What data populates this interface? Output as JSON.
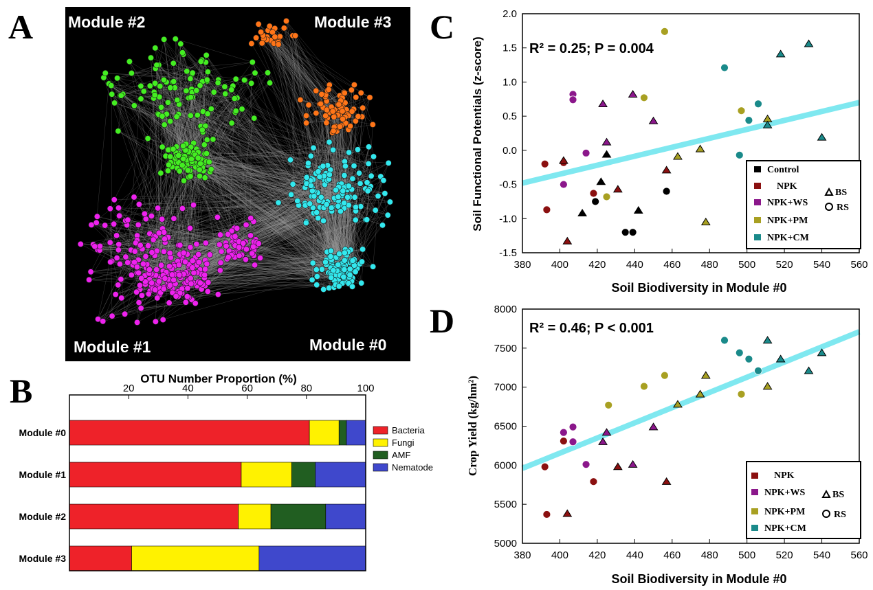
{
  "panels": {
    "a": "A",
    "b": "B",
    "c": "C",
    "d": "D"
  },
  "network": {
    "modules": [
      {
        "label": "Module #0",
        "color": "#33e8ee",
        "nodes": 230
      },
      {
        "label": "Module #1",
        "color": "#ee22ee",
        "nodes": 300
      },
      {
        "label": "Module #2",
        "color": "#44ee22",
        "nodes": 200
      },
      {
        "label": "Module #3",
        "color": "#ff7518",
        "nodes": 100
      }
    ],
    "background": "#000000",
    "edge_color": "#9a9a9a"
  },
  "legend_points": {
    "control": "Control",
    "npk": "NPK",
    "npk_ws": "NPK+WS",
    "npk_pm": "NPK+PM",
    "npk_cm": "NPK+CM",
    "bs": "BS",
    "rs": "RS"
  },
  "colors": {
    "control": "#000000",
    "npk": "#8b1010",
    "npk_ws": "#8b178b",
    "npk_pm": "#a8a022",
    "npk_cm": "#1a8a8a",
    "fit_line": "#7fe8f0"
  },
  "chart_data": [
    {
      "id": "B",
      "type": "bar",
      "orientation": "horizontal",
      "stacked": true,
      "title": "OTU Number Proportion (%)",
      "categories": [
        "Module #0",
        "Module #1",
        "Module #2",
        "Module #3"
      ],
      "xlim": [
        0,
        100
      ],
      "xticks": [
        20,
        40,
        60,
        80,
        100
      ],
      "tick_labels": [
        "20",
        "40",
        "60",
        "80",
        "100"
      ],
      "series": [
        {
          "name": "Bacteria",
          "color": "#ee2229",
          "values": [
            81,
            58,
            57,
            21
          ]
        },
        {
          "name": "Fungi",
          "color": "#fff200",
          "values": [
            10,
            17,
            11,
            43
          ]
        },
        {
          "name": "AMF",
          "color": "#215e21",
          "values": [
            2.5,
            8,
            18.5,
            0
          ]
        },
        {
          "name": "Nematode",
          "color": "#3f48cc",
          "values": [
            6.5,
            17,
            13.5,
            36
          ]
        }
      ],
      "legend_position": "right"
    },
    {
      "id": "C",
      "type": "scatter",
      "xlabel": "Soil Biodiversity in Module #0",
      "ylabel": "Soil Functional Potentials (z-score)",
      "annotation": "R² = 0.25; P = 0.004",
      "xlim": [
        380,
        560
      ],
      "ylim": [
        -1.5,
        2.0
      ],
      "xticks": [
        380,
        400,
        420,
        440,
        460,
        480,
        500,
        520,
        540,
        560
      ],
      "yticks": [
        -1.5,
        -1.0,
        -0.5,
        0.0,
        0.5,
        1.0,
        1.5,
        2.0
      ],
      "x_tick_labels": [
        "380",
        "400",
        "420",
        "440",
        "460",
        "480",
        "500",
        "520",
        "540",
        "560"
      ],
      "y_tick_labels": [
        "-1.5",
        "-1.0",
        "-0.5",
        "0.0",
        "0.5",
        "1.0",
        "1.5",
        "2.0"
      ],
      "fit_line": [
        [
          380,
          -0.48
        ],
        [
          560,
          0.7
        ]
      ],
      "legend_position": "bottom-right",
      "points": [
        {
          "x": 392,
          "y": -0.2,
          "g": "npk",
          "s": "rs"
        },
        {
          "x": 393,
          "y": -0.87,
          "g": "npk",
          "s": "rs"
        },
        {
          "x": 402,
          "y": -0.18,
          "g": "npk",
          "s": "rs"
        },
        {
          "x": 402,
          "y": -0.15,
          "g": "npk",
          "s": "bs"
        },
        {
          "x": 404,
          "y": -1.33,
          "g": "npk",
          "s": "bs"
        },
        {
          "x": 418,
          "y": -0.63,
          "g": "npk",
          "s": "rs"
        },
        {
          "x": 431,
          "y": -0.57,
          "g": "npk",
          "s": "bs"
        },
        {
          "x": 457,
          "y": -0.29,
          "g": "npk",
          "s": "bs"
        },
        {
          "x": 402,
          "y": -0.5,
          "g": "npk_ws",
          "s": "rs"
        },
        {
          "x": 407,
          "y": 0.82,
          "g": "npk_ws",
          "s": "rs"
        },
        {
          "x": 407,
          "y": 0.74,
          "g": "npk_ws",
          "s": "rs"
        },
        {
          "x": 414,
          "y": -0.04,
          "g": "npk_ws",
          "s": "rs"
        },
        {
          "x": 423,
          "y": 0.68,
          "g": "npk_ws",
          "s": "bs"
        },
        {
          "x": 425,
          "y": 0.12,
          "g": "npk_ws",
          "s": "bs"
        },
        {
          "x": 439,
          "y": 0.82,
          "g": "npk_ws",
          "s": "bs"
        },
        {
          "x": 450,
          "y": 0.43,
          "g": "npk_ws",
          "s": "bs"
        },
        {
          "x": 419,
          "y": -0.75,
          "g": "control",
          "s": "rs"
        },
        {
          "x": 412,
          "y": -0.92,
          "g": "control",
          "s": "bs"
        },
        {
          "x": 422,
          "y": -0.46,
          "g": "control",
          "s": "bs"
        },
        {
          "x": 425,
          "y": -0.06,
          "g": "control",
          "s": "bs"
        },
        {
          "x": 435,
          "y": -1.2,
          "g": "control",
          "s": "rs"
        },
        {
          "x": 439,
          "y": -1.2,
          "g": "control",
          "s": "rs"
        },
        {
          "x": 442,
          "y": -0.88,
          "g": "control",
          "s": "bs"
        },
        {
          "x": 457,
          "y": -0.6,
          "g": "control",
          "s": "rs"
        },
        {
          "x": 425,
          "y": -0.68,
          "g": "npk_pm",
          "s": "rs"
        },
        {
          "x": 445,
          "y": 0.77,
          "g": "npk_pm",
          "s": "rs"
        },
        {
          "x": 456,
          "y": 1.74,
          "g": "npk_pm",
          "s": "rs"
        },
        {
          "x": 463,
          "y": -0.09,
          "g": "npk_pm",
          "s": "bs"
        },
        {
          "x": 475,
          "y": 0.02,
          "g": "npk_pm",
          "s": "bs"
        },
        {
          "x": 478,
          "y": -1.05,
          "g": "npk_pm",
          "s": "bs"
        },
        {
          "x": 497,
          "y": 0.58,
          "g": "npk_pm",
          "s": "rs"
        },
        {
          "x": 511,
          "y": 0.46,
          "g": "npk_pm",
          "s": "bs"
        },
        {
          "x": 488,
          "y": 1.21,
          "g": "npk_cm",
          "s": "rs"
        },
        {
          "x": 496,
          "y": -0.07,
          "g": "npk_cm",
          "s": "rs"
        },
        {
          "x": 501,
          "y": 0.44,
          "g": "npk_cm",
          "s": "rs"
        },
        {
          "x": 506,
          "y": 0.68,
          "g": "npk_cm",
          "s": "rs"
        },
        {
          "x": 511,
          "y": 0.37,
          "g": "npk_cm",
          "s": "bs"
        },
        {
          "x": 518,
          "y": 1.41,
          "g": "npk_cm",
          "s": "bs"
        },
        {
          "x": 533,
          "y": 1.56,
          "g": "npk_cm",
          "s": "bs"
        },
        {
          "x": 540,
          "y": 0.19,
          "g": "npk_cm",
          "s": "bs"
        }
      ]
    },
    {
      "id": "D",
      "type": "scatter",
      "xlabel": "Soil Biodiversity in Module #0",
      "ylabel": "Crop Yield  (kg/hm²)",
      "annotation": "R² = 0.46; P < 0.001",
      "xlim": [
        380,
        560
      ],
      "ylim": [
        5000,
        8000
      ],
      "xticks": [
        380,
        400,
        420,
        440,
        460,
        480,
        500,
        520,
        540,
        560
      ],
      "yticks": [
        5000,
        5500,
        6000,
        6500,
        7000,
        7500,
        8000
      ],
      "x_tick_labels": [
        "380",
        "400",
        "420",
        "440",
        "460",
        "480",
        "500",
        "520",
        "540",
        "560"
      ],
      "y_tick_labels": [
        "5000",
        "5500",
        "6000",
        "6500",
        "7000",
        "7500",
        "8000"
      ],
      "fit_line": [
        [
          380,
          5960
        ],
        [
          560,
          7710
        ]
      ],
      "legend_position": "bottom-right",
      "points": [
        {
          "x": 392,
          "y": 5980,
          "g": "npk",
          "s": "rs"
        },
        {
          "x": 393,
          "y": 5370,
          "g": "npk",
          "s": "rs"
        },
        {
          "x": 402,
          "y": 6310,
          "g": "npk",
          "s": "rs"
        },
        {
          "x": 404,
          "y": 5380,
          "g": "npk",
          "s": "bs"
        },
        {
          "x": 418,
          "y": 5790,
          "g": "npk",
          "s": "rs"
        },
        {
          "x": 431,
          "y": 5980,
          "g": "npk",
          "s": "bs"
        },
        {
          "x": 457,
          "y": 5790,
          "g": "npk",
          "s": "bs"
        },
        {
          "x": 402,
          "y": 6420,
          "g": "npk_ws",
          "s": "rs"
        },
        {
          "x": 407,
          "y": 6490,
          "g": "npk_ws",
          "s": "rs"
        },
        {
          "x": 407,
          "y": 6300,
          "g": "npk_ws",
          "s": "rs"
        },
        {
          "x": 414,
          "y": 6010,
          "g": "npk_ws",
          "s": "rs"
        },
        {
          "x": 423,
          "y": 6300,
          "g": "npk_ws",
          "s": "bs"
        },
        {
          "x": 425,
          "y": 6420,
          "g": "npk_ws",
          "s": "bs"
        },
        {
          "x": 439,
          "y": 6010,
          "g": "npk_ws",
          "s": "bs"
        },
        {
          "x": 450,
          "y": 6490,
          "g": "npk_ws",
          "s": "bs"
        },
        {
          "x": 426,
          "y": 6770,
          "g": "npk_pm",
          "s": "rs"
        },
        {
          "x": 445,
          "y": 7010,
          "g": "npk_pm",
          "s": "rs"
        },
        {
          "x": 456,
          "y": 7150,
          "g": "npk_pm",
          "s": "rs"
        },
        {
          "x": 463,
          "y": 6780,
          "g": "npk_pm",
          "s": "bs"
        },
        {
          "x": 475,
          "y": 6910,
          "g": "npk_pm",
          "s": "bs"
        },
        {
          "x": 478,
          "y": 7150,
          "g": "npk_pm",
          "s": "bs"
        },
        {
          "x": 497,
          "y": 6910,
          "g": "npk_pm",
          "s": "rs"
        },
        {
          "x": 511,
          "y": 7010,
          "g": "npk_pm",
          "s": "bs"
        },
        {
          "x": 488,
          "y": 7600,
          "g": "npk_cm",
          "s": "rs"
        },
        {
          "x": 496,
          "y": 7440,
          "g": "npk_cm",
          "s": "rs"
        },
        {
          "x": 501,
          "y": 7360,
          "g": "npk_cm",
          "s": "rs"
        },
        {
          "x": 506,
          "y": 7210,
          "g": "npk_cm",
          "s": "rs"
        },
        {
          "x": 511,
          "y": 7600,
          "g": "npk_cm",
          "s": "bs"
        },
        {
          "x": 518,
          "y": 7360,
          "g": "npk_cm",
          "s": "bs"
        },
        {
          "x": 533,
          "y": 7210,
          "g": "npk_cm",
          "s": "bs"
        },
        {
          "x": 540,
          "y": 7440,
          "g": "npk_cm",
          "s": "bs"
        }
      ]
    }
  ]
}
